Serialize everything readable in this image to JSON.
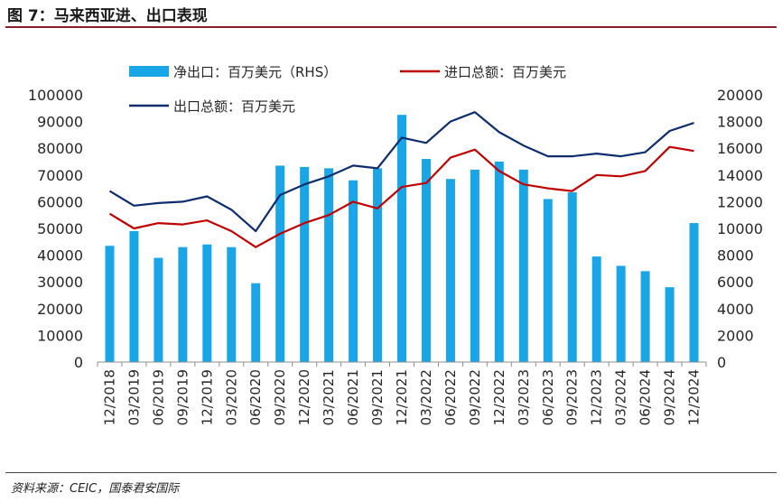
{
  "header": {
    "title": "图 7：马来西亚进、出口表现"
  },
  "footer": {
    "source": "资料来源：CEIC，国泰君安国际"
  },
  "colors": {
    "bar": "#1aa6e6",
    "imports": "#c00000",
    "exports": "#0d2d6e",
    "rule": "#8a1f2a"
  },
  "chart_data": {
    "type": "bar",
    "categories": [
      "12/2018",
      "03/2019",
      "06/2019",
      "09/2019",
      "12/2019",
      "03/2020",
      "06/2020",
      "09/2020",
      "12/2020",
      "03/2021",
      "06/2021",
      "09/2021",
      "12/2021",
      "03/2022",
      "06/2022",
      "09/2022",
      "12/2022",
      "03/2023",
      "06/2023",
      "09/2023",
      "12/2023",
      "03/2024",
      "06/2024",
      "09/2024",
      "12/2024"
    ],
    "series": [
      {
        "name": "净出口：百万美元（RHS）",
        "type": "bar",
        "axis": "right",
        "values": [
          8700,
          9800,
          7800,
          8600,
          8800,
          8600,
          5900,
          14700,
          14600,
          14500,
          13600,
          14500,
          18500,
          15200,
          13700,
          14400,
          15000,
          14400,
          12200,
          12700,
          7900,
          7200,
          6800,
          5600,
          10400
        ]
      },
      {
        "name": "进口总额：百万美元",
        "type": "line",
        "axis": "left",
        "values": [
          55500,
          50000,
          52000,
          51500,
          53000,
          49000,
          43000,
          48000,
          52000,
          55000,
          60000,
          57500,
          65500,
          67000,
          76500,
          79500,
          71500,
          66500,
          65000,
          64000,
          70000,
          69500,
          71500,
          80500,
          79000
        ]
      },
      {
        "name": "出口总额：百万美元",
        "type": "line",
        "axis": "left",
        "values": [
          64000,
          58500,
          59500,
          60000,
          62000,
          57000,
          49000,
          62500,
          66500,
          69500,
          73500,
          72500,
          84000,
          82000,
          90000,
          93500,
          86000,
          81000,
          77000,
          77000,
          78000,
          77000,
          78500,
          86500,
          89500
        ]
      }
    ],
    "y_left": {
      "lim": [
        0,
        100000
      ],
      "ticks": [
        "0",
        "10000",
        "20000",
        "30000",
        "40000",
        "50000",
        "60000",
        "70000",
        "80000",
        "90000",
        "100000"
      ]
    },
    "y_right": {
      "lim": [
        0,
        20000
      ],
      "ticks": [
        "0",
        "2000",
        "4000",
        "6000",
        "8000",
        "10000",
        "12000",
        "14000",
        "16000",
        "18000",
        "20000"
      ]
    },
    "legend": {
      "placement": "top"
    },
    "grid": false
  }
}
